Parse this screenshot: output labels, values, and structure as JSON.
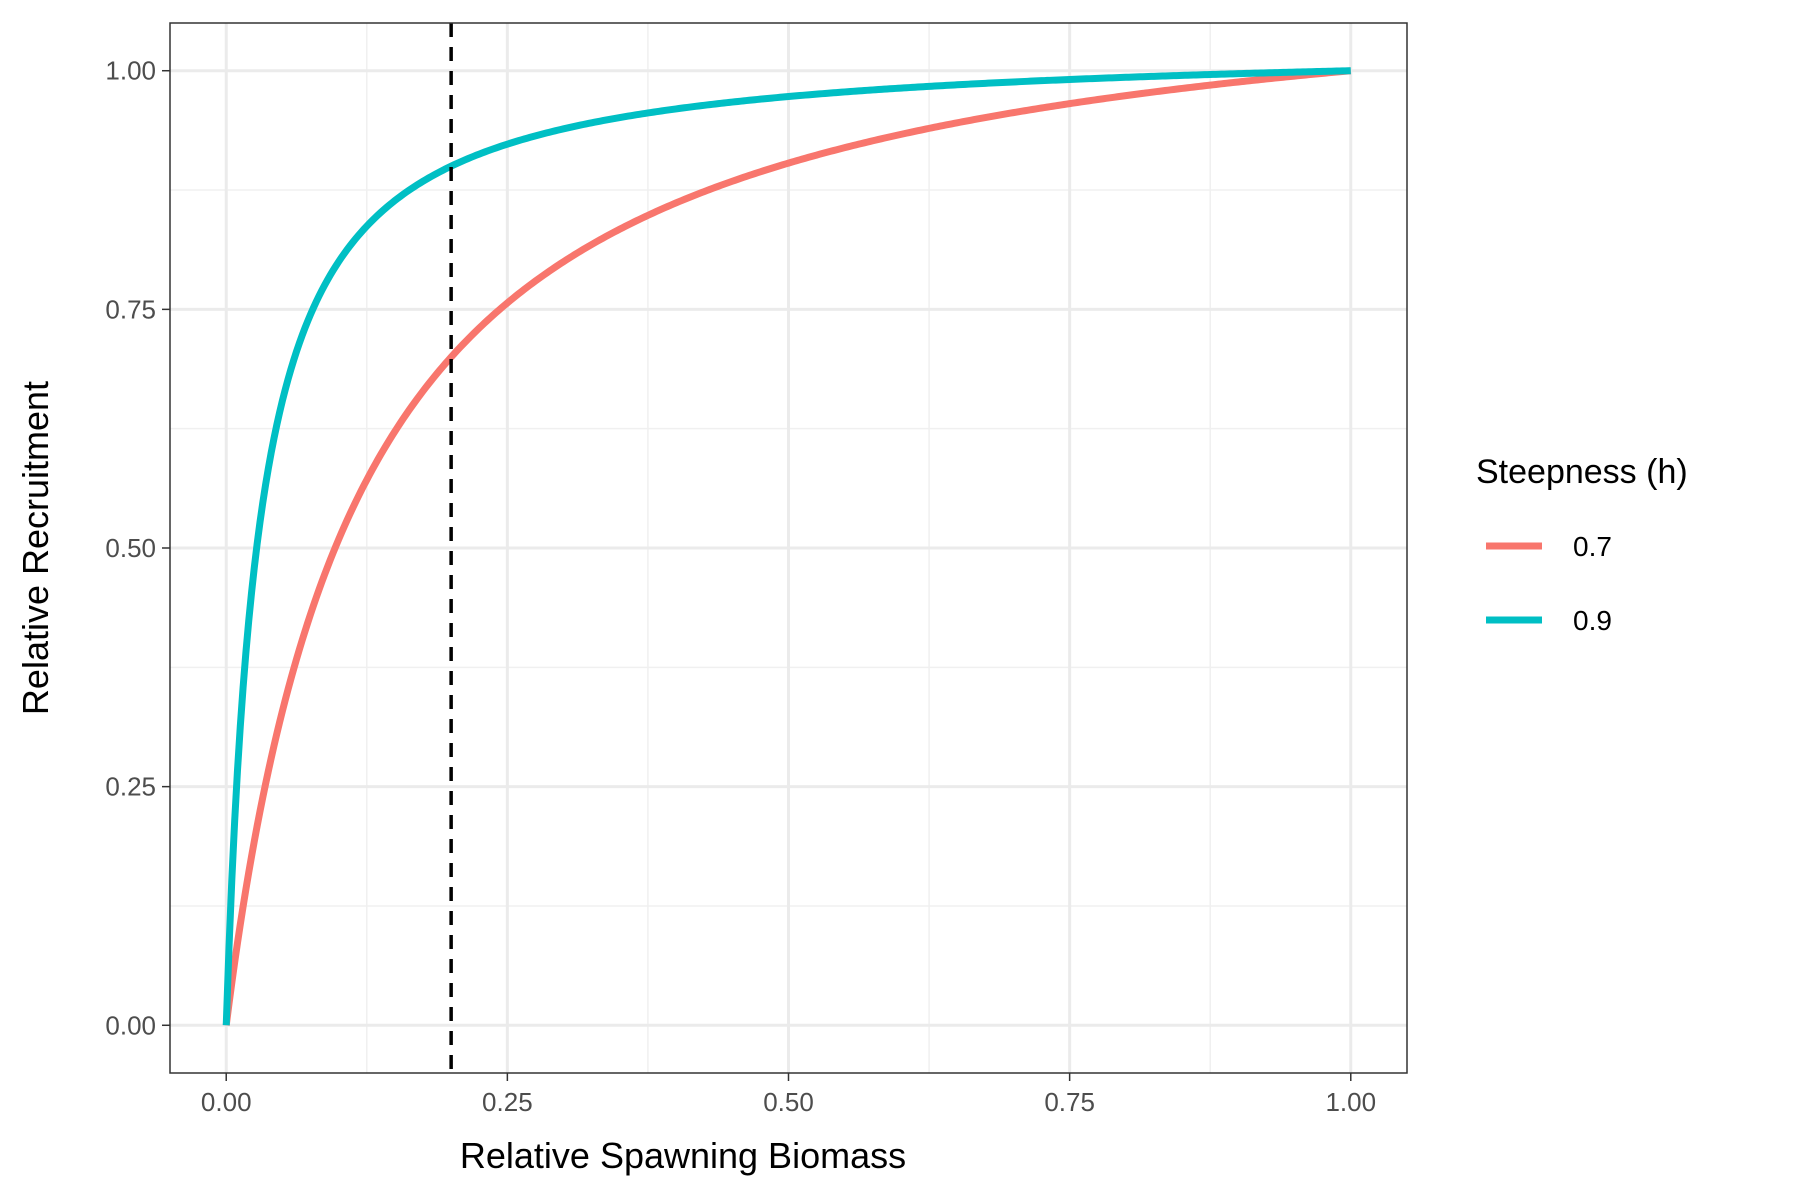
{
  "chart_data": {
    "type": "line",
    "title": "",
    "xlabel": "Relative Spawning Biomass",
    "ylabel": "Relative Recruitment",
    "xlim": [
      -0.05,
      1.05
    ],
    "ylim": [
      -0.05,
      1.05
    ],
    "x_ticks": [
      0,
      0.25,
      0.5,
      0.75,
      1.0
    ],
    "x_tick_labels": [
      "0.00",
      "0.25",
      "0.50",
      "0.75",
      "1.00"
    ],
    "y_ticks": [
      0,
      0.25,
      0.5,
      0.75,
      1.0
    ],
    "y_tick_labels": [
      "0.00",
      "0.25",
      "0.50",
      "0.75",
      "1.00"
    ],
    "grid": true,
    "legend_title": "Steepness (h)",
    "legend_position": "right",
    "series": [
      {
        "name": "0.7",
        "color": "#F8766D",
        "h": 0.7,
        "x": [
          0,
          0.01,
          0.02,
          0.05,
          0.1,
          0.15,
          0.2,
          0.25,
          0.3,
          0.4,
          0.5,
          0.6,
          0.7,
          0.8,
          0.9,
          1.0
        ],
        "y": [
          0,
          0.102,
          0.189,
          0.389,
          0.56,
          0.656,
          0.718,
          0.761,
          0.792,
          0.836,
          0.864,
          0.884,
          0.899,
          0.91,
          0.92,
          0.928
        ]
      },
      {
        "name": "0.9",
        "color": "#00BFC4",
        "h": 0.9,
        "x": [
          0,
          0.01,
          0.02,
          0.05,
          0.1,
          0.15,
          0.2,
          0.25,
          0.3,
          0.4,
          0.5,
          0.6,
          0.7,
          0.8,
          0.9,
          1.0
        ],
        "y": [
          0,
          0.271,
          0.426,
          0.65,
          0.788,
          0.849,
          0.882,
          0.904,
          0.919,
          0.938,
          0.95,
          0.958,
          0.964,
          0.968,
          0.972,
          0.975
        ]
      }
    ],
    "vline": {
      "x": 0.2,
      "style": "dashed",
      "color": "#000000"
    }
  }
}
